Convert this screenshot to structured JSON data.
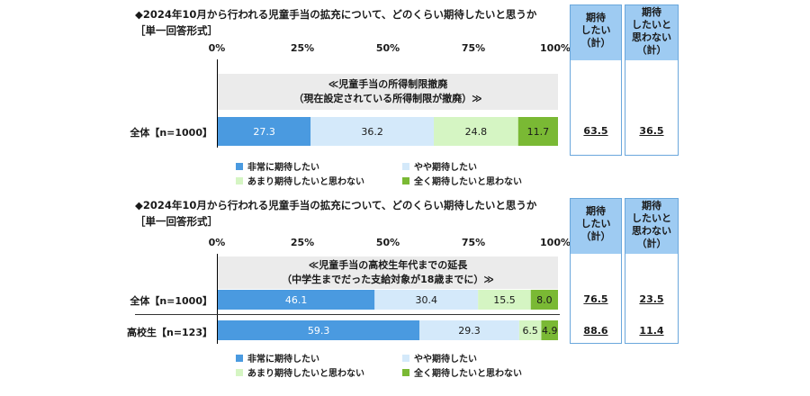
{
  "colors": {
    "very": "#4a9ae0",
    "somewhat": "#d4e9fa",
    "notmuch": "#d5f5c3",
    "notatall": "#7ab934",
    "summary_header": "#9ecbf2",
    "band": "#ebebeb"
  },
  "summary_headers": {
    "expect": [
      "期待",
      "したい",
      "（計）"
    ],
    "not_expect": [
      "期待",
      "したいと",
      "思わない",
      "（計）"
    ]
  },
  "legend": {
    "very": "非常に期待したい",
    "somewhat": "やや期待したい",
    "notmuch": "あまり期待したいと思わない",
    "notatall": "全く期待したいと思わない"
  },
  "chart_data": [
    {
      "type": "bar",
      "orientation": "horizontal",
      "stacked": true,
      "title": "◆2024年10月から行われる児童手当の拡充について、どのくらい期待したいと思うか",
      "subtitle": "［単一回答形式］",
      "xlim": [
        0,
        100
      ],
      "ticks": [
        "0%",
        "25%",
        "50%",
        "75%",
        "100%"
      ],
      "item_label": [
        "≪児童手当の所得制限撤廃",
        "（現在設定されている所得制限が撤廃）≫"
      ],
      "legend_placement": "bottom",
      "series_names": [
        "非常に期待したい",
        "やや期待したい",
        "あまり期待したいと思わない",
        "全く期待したいと思わない"
      ],
      "rows": [
        {
          "label": "全体【n=1000】",
          "values": [
            27.3,
            36.2,
            24.8,
            11.7
          ],
          "expect_total": "63.5",
          "not_expect_total": "36.5"
        }
      ]
    },
    {
      "type": "bar",
      "orientation": "horizontal",
      "stacked": true,
      "title": "◆2024年10月から行われる児童手当の拡充について、どのくらい期待したいと思うか",
      "subtitle": "［単一回答形式］",
      "xlim": [
        0,
        100
      ],
      "ticks": [
        "0%",
        "25%",
        "50%",
        "75%",
        "100%"
      ],
      "item_label": [
        "≪児童手当の高校生年代までの延長",
        "（中学生までだった支給対象が18歳までに）≫"
      ],
      "legend_placement": "bottom",
      "series_names": [
        "非常に期待したい",
        "やや期待したい",
        "あまり期待したいと思わない",
        "全く期待したいと思わない"
      ],
      "rows": [
        {
          "label": "全体【n=1000】",
          "values": [
            46.1,
            30.4,
            15.5,
            8.0
          ],
          "expect_total": "76.5",
          "not_expect_total": "23.5"
        },
        {
          "label": "高校生【n=123】",
          "values": [
            59.3,
            29.3,
            6.5,
            4.9
          ],
          "expect_total": "88.6",
          "not_expect_total": "11.4"
        }
      ]
    }
  ]
}
